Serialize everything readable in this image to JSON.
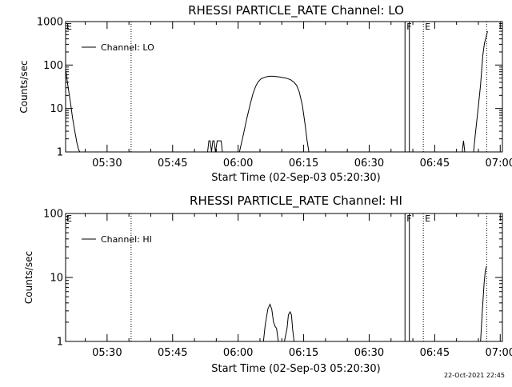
{
  "footer": {
    "timestamp": "22-Oct-2021 22:45"
  },
  "chart_data": [
    {
      "type": "line",
      "title": "RHESSI PARTICLE_RATE Channel: LO",
      "xlabel": "Start Time (02-Sep-03 05:20:30)",
      "ylabel": "Counts/sec",
      "y_scale": "log",
      "ylim": [
        1,
        1000
      ],
      "xlim_minutes": [
        20.5,
        120.5
      ],
      "x_ticks": [
        "05:30",
        "05:45",
        "06:00",
        "06:15",
        "06:30",
        "06:45",
        "07:00"
      ],
      "y_ticks": [
        "1",
        "10",
        "100",
        "1000"
      ],
      "legend": {
        "position": "top-left",
        "entries": [
          "Channel: LO"
        ]
      },
      "markers": [
        {
          "label": "",
          "x": 35.5,
          "style": "dotted"
        },
        {
          "label": "F",
          "x": 98.2,
          "style": "solid"
        },
        {
          "label": "",
          "x": 99.2,
          "style": "solid"
        },
        {
          "label": "E",
          "x": 102.4,
          "style": "dotted"
        },
        {
          "label": "",
          "x": 116.9,
          "style": "dotted"
        }
      ],
      "series": [
        {
          "name": "Channel: LO",
          "x": [
            20.5,
            21.0,
            21.6,
            22.1,
            22.6,
            23.1,
            23.5,
            23.8,
            24.2,
            53.0,
            53.3,
            53.6,
            53.9,
            54.2,
            54.5,
            54.8,
            55.2,
            55.5,
            55.8,
            56.1,
            56.4,
            60.3,
            60.7,
            61.3,
            62.0,
            62.8,
            63.4,
            64.0,
            64.5,
            65.2,
            66.0,
            67.0,
            68.0,
            69.5,
            71.0,
            72.0,
            72.8,
            73.4,
            74.0,
            74.7,
            75.3,
            75.8,
            76.2,
            111.3,
            111.6,
            111.9,
            113.9,
            114.3,
            114.9,
            115.5,
            116.0,
            116.4,
            116.8,
            117.1
          ],
          "y": [
            80,
            35,
            14,
            6,
            3,
            1.6,
            1.1,
            1.0,
            1.0,
            1.0,
            1.8,
            1.8,
            1.0,
            1.8,
            1.8,
            1.0,
            1.8,
            1.8,
            1.8,
            1.8,
            1.0,
            1.0,
            1.5,
            2.8,
            6,
            13,
            22,
            32,
            40,
            48,
            52,
            55,
            55,
            53,
            50,
            46,
            40,
            34,
            24,
            12,
            4.5,
            1.8,
            1.0,
            1.0,
            1.8,
            1.0,
            1.0,
            2.5,
            9,
            35,
            160,
            320,
            450,
            600
          ]
        }
      ]
    },
    {
      "type": "line",
      "title": "RHESSI PARTICLE_RATE Channel: HI",
      "xlabel": "Start Time (02-Sep-03 05:20:30)",
      "ylabel": "Counts/sec",
      "y_scale": "log",
      "ylim": [
        1,
        100
      ],
      "xlim_minutes": [
        20.5,
        120.5
      ],
      "x_ticks": [
        "05:30",
        "05:45",
        "06:00",
        "06:15",
        "06:30",
        "06:45",
        "07:00"
      ],
      "y_ticks": [
        "1",
        "10",
        "100"
      ],
      "legend": {
        "position": "top-left",
        "entries": [
          "Channel: HI"
        ]
      },
      "markers": [
        {
          "label": "",
          "x": 35.5,
          "style": "dotted"
        },
        {
          "label": "F",
          "x": 98.2,
          "style": "solid"
        },
        {
          "label": "",
          "x": 99.2,
          "style": "solid"
        },
        {
          "label": "E",
          "x": 102.4,
          "style": "dotted"
        },
        {
          "label": "",
          "x": 116.9,
          "style": "dotted"
        }
      ],
      "series": [
        {
          "name": "Channel: HI",
          "x": [
            65.8,
            66.2,
            66.8,
            67.3,
            67.7,
            68.1,
            68.5,
            68.8,
            69.2,
            69.8,
            70.6,
            71.2,
            71.5,
            71.9,
            72.2,
            72.5,
            72.8,
            115.5,
            115.9,
            116.3,
            116.6,
            116.9
          ],
          "y": [
            1.0,
            1.8,
            3.2,
            3.8,
            3.2,
            2.0,
            1.7,
            1.6,
            1.0,
            1.0,
            1.0,
            1.6,
            2.6,
            2.9,
            2.6,
            1.5,
            1.0,
            1.0,
            3.0,
            8.0,
            13.0,
            15.0
          ]
        }
      ]
    }
  ]
}
